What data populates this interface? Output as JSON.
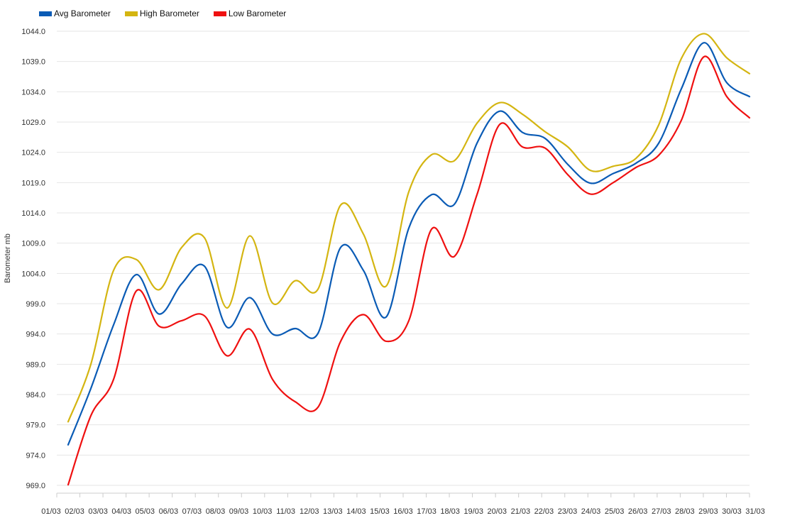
{
  "legend": [
    {
      "label": "Avg Barometer",
      "color": "#0a5bb5"
    },
    {
      "label": "High Barometer",
      "color": "#d4b511"
    },
    {
      "label": "Low Barometer",
      "color": "#ef1010"
    }
  ],
  "chart_data": {
    "type": "line",
    "ylabel": "Barometer mb",
    "ylim": [
      969.0,
      1044.0
    ],
    "yticks": [
      "969.0",
      "974.0",
      "979.0",
      "984.0",
      "989.0",
      "994.0",
      "999.0",
      "1004.0",
      "1009.0",
      "1014.0",
      "1019.0",
      "1024.0",
      "1029.0",
      "1034.0",
      "1039.0",
      "1044.0"
    ],
    "categories": [
      "01/03",
      "02/03",
      "03/03",
      "04/03",
      "05/03",
      "06/03",
      "07/03",
      "08/03",
      "09/03",
      "10/03",
      "11/03",
      "12/03",
      "13/03",
      "14/03",
      "15/03",
      "16/03",
      "17/03",
      "18/03",
      "19/03",
      "20/03",
      "21/03",
      "22/03",
      "23/03",
      "24/03",
      "25/03",
      "26/03",
      "27/03",
      "28/03",
      "29/03",
      "30/03",
      "31/03"
    ],
    "x_tick_labels": [
      "01/03",
      "02/03",
      "03/03",
      "04/03",
      "05/03",
      "06/03",
      "07/03",
      "08/03",
      "09/03",
      "10/03",
      "11/03",
      "12/03",
      "13/03",
      "14/03",
      "15/03",
      "16/03",
      "17/03",
      "18/03",
      "19/03",
      "20/03",
      "21/03",
      "22/03",
      "23/03",
      "24/03",
      "25/03",
      "26/03",
      "27/03",
      "28/03",
      "29/03",
      "30/03",
      "31/03"
    ],
    "grid": true,
    "legend_position": "top-left",
    "series": [
      {
        "name": "Avg Barometer",
        "color": "#0a5bb5",
        "values": [
          975.7,
          985.0,
          995.5,
          1003.8,
          997.3,
          1002.3,
          1005.2,
          995.1,
          1000.0,
          994.0,
          994.9,
          994.1,
          1008.3,
          1004.5,
          996.8,
          1011.5,
          1017.0,
          1015.4,
          1025.5,
          1030.8,
          1027.3,
          1026.3,
          1022.0,
          1018.9,
          1020.5,
          1022.2,
          1025.5,
          1034.5,
          1042.1,
          1035.5,
          1033.2
        ]
      },
      {
        "name": "High Barometer",
        "color": "#d4b511",
        "values": [
          979.5,
          989.0,
          1004.5,
          1006.3,
          1001.3,
          1008.3,
          1009.9,
          998.3,
          1010.2,
          999.1,
          1002.8,
          1001.4,
          1015.3,
          1010.5,
          1001.9,
          1017.5,
          1023.6,
          1022.6,
          1028.8,
          1032.2,
          1030.3,
          1027.4,
          1024.9,
          1021.0,
          1021.7,
          1023.0,
          1028.5,
          1039.5,
          1043.6,
          1039.6,
          1037.0
        ]
      },
      {
        "name": "Low Barometer",
        "color": "#ef1010",
        "values": [
          969.1,
          980.5,
          986.5,
          1001.1,
          995.3,
          996.2,
          997.0,
          990.4,
          994.8,
          986.5,
          982.8,
          981.9,
          992.8,
          997.2,
          992.8,
          996.2,
          1011.3,
          1006.8,
          1017.0,
          1028.6,
          1024.9,
          1024.7,
          1020.3,
          1017.1,
          1019.0,
          1021.5,
          1023.5,
          1029.3,
          1039.8,
          1033.2,
          1029.7
        ]
      }
    ]
  }
}
